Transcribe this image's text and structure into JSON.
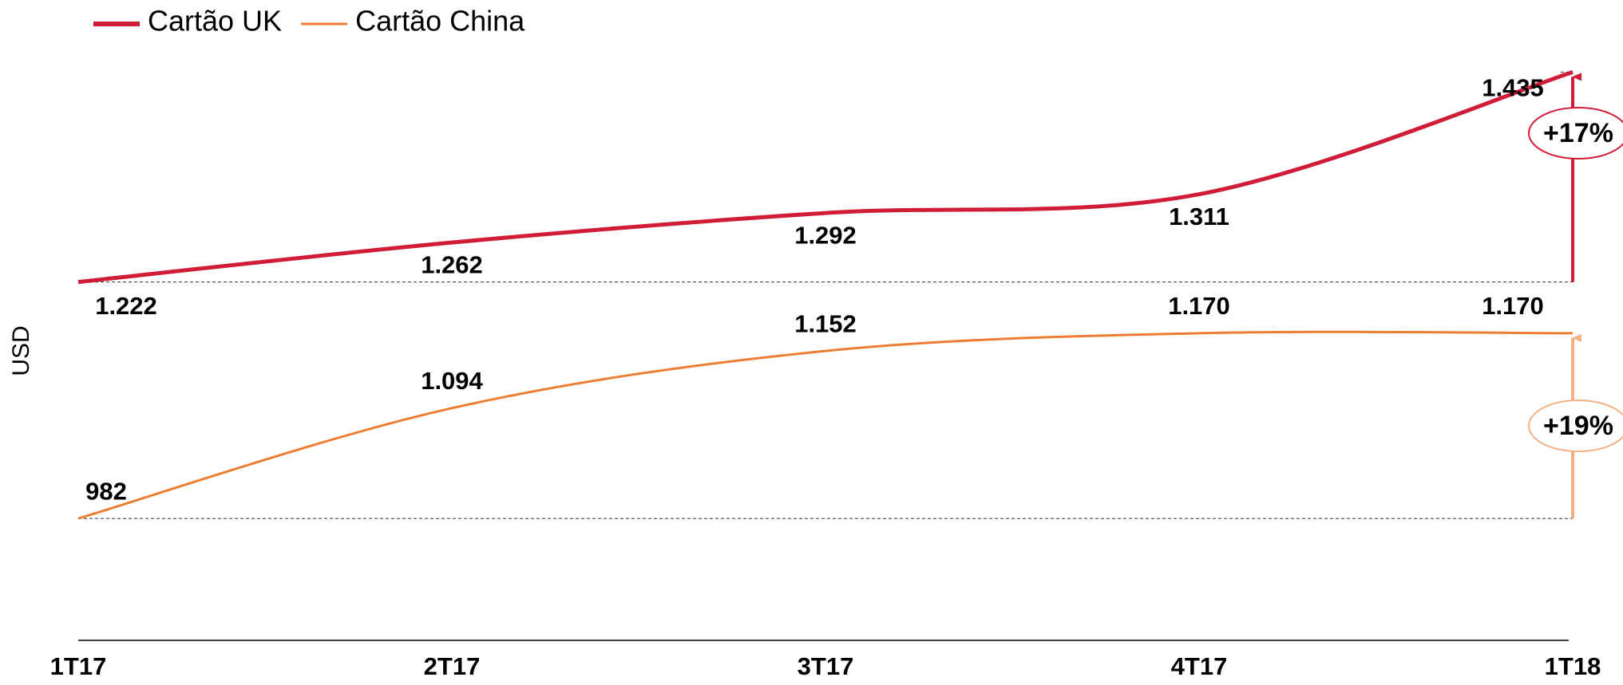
{
  "chart_data": {
    "type": "line",
    "y_axis_label": "USD",
    "categories": [
      "1T17",
      "2T17",
      "3T17",
      "4T17",
      "1T18"
    ],
    "series": [
      {
        "name": "Cartão UK",
        "color": "#d01c37",
        "values": [
          1222,
          1262,
          1292,
          1311,
          1435
        ],
        "value_labels": [
          "1.222",
          "1.262",
          "1.292",
          "1.311",
          "1.435"
        ],
        "change_label": "+17%",
        "change_color": "#d01c37"
      },
      {
        "name": "Cartão China",
        "color": "#ed7d31",
        "values": [
          982,
          1094,
          1152,
          1170,
          1170
        ],
        "value_labels": [
          "982",
          "1.094",
          "1.152",
          "1.170",
          "1.170"
        ],
        "change_label": "+19%",
        "change_color": "#f4b183"
      }
    ],
    "ylim": [
      860,
      1500
    ],
    "legend": "top-left"
  }
}
